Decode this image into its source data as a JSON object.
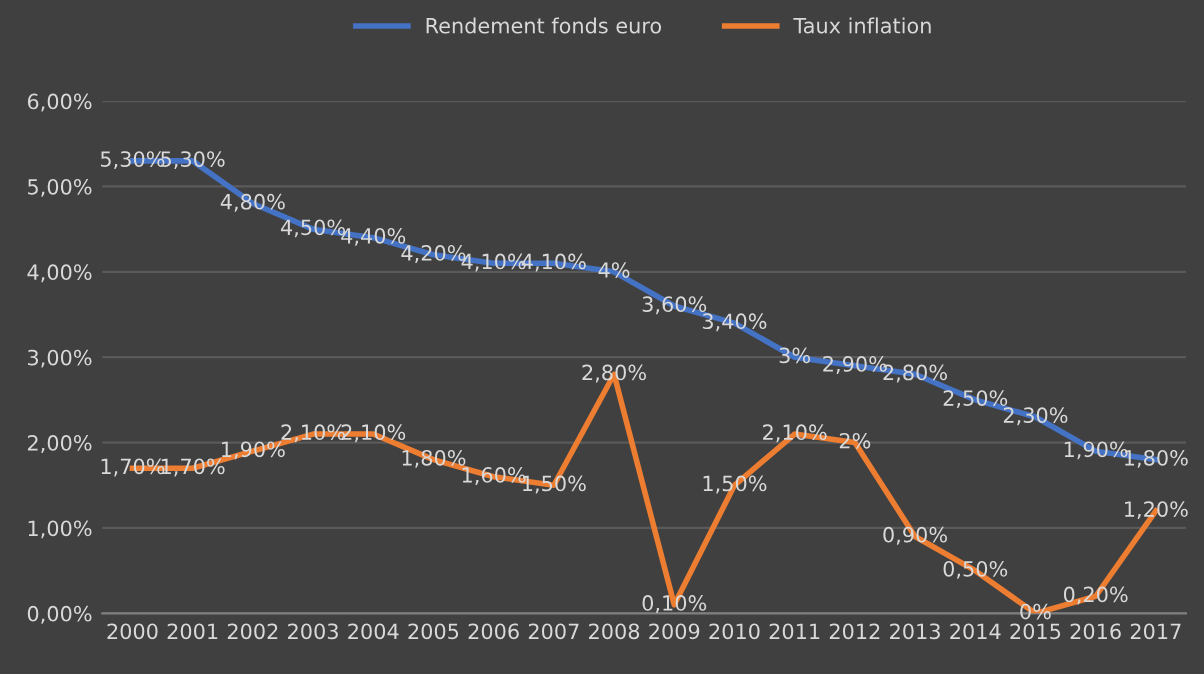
{
  "chart_data": {
    "type": "line",
    "categories": [
      "2000",
      "2001",
      "2002",
      "2003",
      "2004",
      "2005",
      "2006",
      "2007",
      "2008",
      "2009",
      "2010",
      "2011",
      "2012",
      "2013",
      "2014",
      "2015",
      "2016",
      "2017"
    ],
    "series": [
      {
        "name": "Rendement fonds euro",
        "color": "#4472c4",
        "values": [
          5.3,
          5.3,
          4.8,
          4.5,
          4.4,
          4.2,
          4.1,
          4.1,
          4,
          3.6,
          3.4,
          3,
          2.9,
          2.8,
          2.5,
          2.3,
          1.9,
          1.8
        ],
        "value_labels": [
          "5,30%",
          "5,30%",
          "4,80%",
          "4,50%",
          "4,40%",
          "4,20%",
          "4,10%",
          "4,10%",
          "4%",
          "3,60%",
          "3,40%",
          "3%",
          "2,90%",
          "2,80%",
          "2,50%",
          "2,30%",
          "1,90%",
          "1,80%"
        ]
      },
      {
        "name": "Taux inflation",
        "color": "#ed7d31",
        "values": [
          1.7,
          1.7,
          1.9,
          2.1,
          2.1,
          1.8,
          1.6,
          1.5,
          2.8,
          0.1,
          1.5,
          2.1,
          2,
          0.9,
          0.5,
          0,
          0.2,
          1.2
        ],
        "value_labels": [
          "1,70%",
          "1,70%",
          "1,90%",
          "2,10%",
          "2,10%",
          "1,80%",
          "1,60%",
          "1,50%",
          "2,80%",
          "0,10%",
          "1,50%",
          "2,10%",
          "2%",
          "0,90%",
          "0,50%",
          "0%",
          "0,20%",
          "1,20%"
        ]
      }
    ],
    "ylim": [
      0,
      6
    ],
    "yticks": [
      {
        "value": 0,
        "label": "0,00%"
      },
      {
        "value": 1,
        "label": "1,00%"
      },
      {
        "value": 2,
        "label": "2,00%"
      },
      {
        "value": 3,
        "label": "3,00%"
      },
      {
        "value": 4,
        "label": "4,00%"
      },
      {
        "value": 5,
        "label": "5,00%"
      },
      {
        "value": 6,
        "label": "6,00%"
      }
    ],
    "grid": "y",
    "legend": "top",
    "marker": "none",
    "line_style": "solid"
  }
}
